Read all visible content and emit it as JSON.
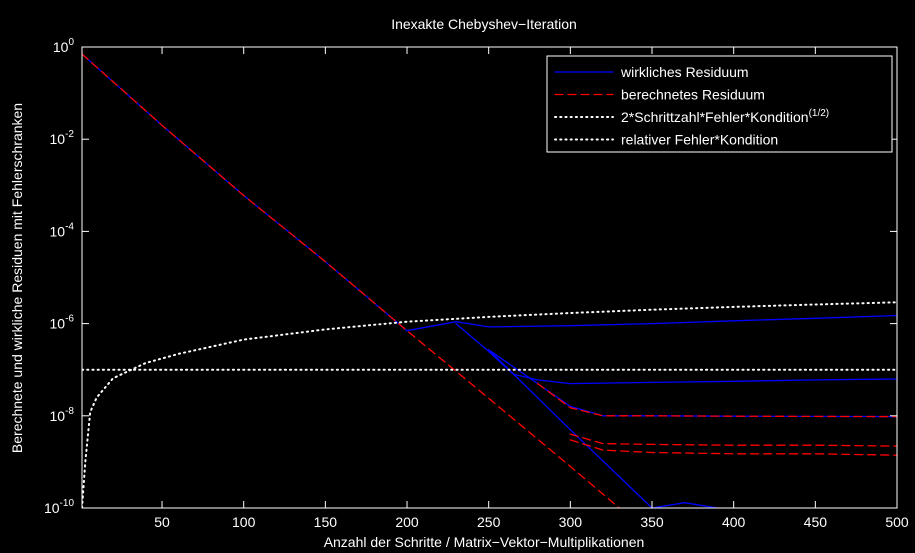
{
  "chart_data": {
    "type": "line",
    "title": "Inexakte Chebyshev−Iteration",
    "xlabel": "Anzahl der Schritte / Matrix−Vektor−Multiplikationen",
    "ylabel": "Berechnete und wirkliche Residuen mit Fehlerschranken",
    "x_scale": "linear",
    "y_scale": "log",
    "xlim": [
      1,
      500
    ],
    "ylim": [
      1e-10,
      1
    ],
    "grid": false,
    "legend_position": "top-right",
    "x_ticks": [
      50,
      100,
      150,
      200,
      250,
      300,
      350,
      400,
      450,
      500
    ],
    "y_ticks": [
      {
        "base": "10",
        "exp": "0",
        "value": 1
      },
      {
        "base": "10",
        "exp": "-2",
        "value": 0.01
      },
      {
        "base": "10",
        "exp": "-4",
        "value": 0.0001
      },
      {
        "base": "10",
        "exp": "-6",
        "value": 1e-06
      },
      {
        "base": "10",
        "exp": "-8",
        "value": 1e-08
      },
      {
        "base": "10",
        "exp": "-10",
        "value": 1e-10
      }
    ],
    "legend": [
      {
        "label": "wirkliches Residuum",
        "sup": "",
        "color": "#0000ff",
        "style": "solid"
      },
      {
        "label": "berechnetes Residuum",
        "sup": "",
        "color": "#ff0000",
        "style": "dashed"
      },
      {
        "label": "2*Schrittzahl*Fehler*Kondition",
        "sup": "(1/2)",
        "color": "#ffffff",
        "style": "dotted"
      },
      {
        "label": "relativer Fehler*Kondition",
        "sup": "",
        "color": "#ffffff",
        "style": "dotted"
      }
    ],
    "series": [
      {
        "name": "wirkliches Residuum",
        "color": "#0000ff",
        "style": "solid",
        "x": [
          1,
          50,
          100,
          150,
          200,
          230,
          250,
          300,
          350,
          400,
          450,
          500
        ],
        "y": [
          0.7,
          0.02,
          0.0006,
          2.2e-05,
          7e-07,
          1.1e-06,
          8.5e-07,
          9e-07,
          1e-06,
          1.15e-06,
          1.3e-06,
          1.5e-06
        ]
      },
      {
        "name": "wirkliches Residuum",
        "color": "#0000ff",
        "style": "solid",
        "x": [
          230,
          250,
          265,
          280,
          300,
          350,
          400,
          450,
          500
        ],
        "y": [
          1e-06,
          2.5e-07,
          8e-08,
          6e-08,
          5e-08,
          5.3e-08,
          5.6e-08,
          6e-08,
          6.3e-08
        ]
      },
      {
        "name": "wirkliches Residuum",
        "color": "#0000ff",
        "style": "solid",
        "x": [
          250,
          280,
          300,
          320,
          350,
          400,
          450,
          500
        ],
        "y": [
          2.7e-07,
          5e-08,
          1.6e-08,
          1e-08,
          1e-08,
          9.8e-09,
          9.7e-09,
          9.6e-09
        ]
      },
      {
        "name": "wirkliches Residuum",
        "color": "#0000ff",
        "style": "solid",
        "x": [
          250,
          300,
          350,
          370,
          390,
          420,
          460,
          500
        ],
        "y": [
          2.7e-07,
          5e-09,
          1e-10,
          1.3e-10,
          1e-10,
          9e-11,
          9e-11,
          9e-11
        ]
      },
      {
        "name": "berechnetes Residuum",
        "color": "#ff0000",
        "style": "dashed",
        "x": [
          1,
          50,
          100,
          150,
          200,
          250,
          300,
          350,
          368,
          390,
          420,
          460,
          500
        ],
        "y": [
          0.7,
          0.02,
          0.0006,
          2.2e-05,
          7e-07,
          2.4e-08,
          8e-10,
          2.5e-11,
          8e-12,
          1e-10,
          9e-11,
          9e-11,
          9e-11
        ]
      },
      {
        "name": "berechnetes Residuum",
        "color": "#ff0000",
        "style": "dashed",
        "x": [
          280,
          300,
          320,
          350,
          400,
          450,
          500
        ],
        "y": [
          5e-08,
          1.5e-08,
          1e-08,
          1e-08,
          9.8e-09,
          9.7e-09,
          9.6e-09
        ]
      },
      {
        "name": "berechnetes Residuum",
        "color": "#ff0000",
        "style": "dashed",
        "x": [
          300,
          320,
          350,
          400,
          450,
          500
        ],
        "y": [
          4e-09,
          2.5e-09,
          2.4e-09,
          2.3e-09,
          2.3e-09,
          2.2e-09
        ]
      },
      {
        "name": "berechnetes Residuum",
        "color": "#ff0000",
        "style": "dashed",
        "x": [
          300,
          320,
          350,
          400,
          450,
          500
        ],
        "y": [
          3e-09,
          1.8e-09,
          1.6e-09,
          1.5e-09,
          1.5e-09,
          1.4e-09
        ]
      },
      {
        "name": "2*Schrittzahl*Fehler*Kondition",
        "color": "#ffffff",
        "style": "dotted",
        "x": [
          1,
          3,
          6,
          10,
          20,
          40,
          60,
          100,
          150,
          200,
          250,
          300,
          350,
          400,
          450,
          500
        ],
        "y": [
          1e-10,
          1e-09,
          1.2e-08,
          2.5e-08,
          6.5e-08,
          1.4e-07,
          2.2e-07,
          4.5e-07,
          7.5e-07,
          1.1e-06,
          1.4e-06,
          1.7e-06,
          2e-06,
          2.3e-06,
          2.6e-06,
          2.9e-06
        ]
      },
      {
        "name": "relativer Fehler*Kondition",
        "color": "#ffffff",
        "style": "dotted",
        "x": [
          1,
          500
        ],
        "y": [
          1e-07,
          1e-07
        ]
      }
    ]
  }
}
